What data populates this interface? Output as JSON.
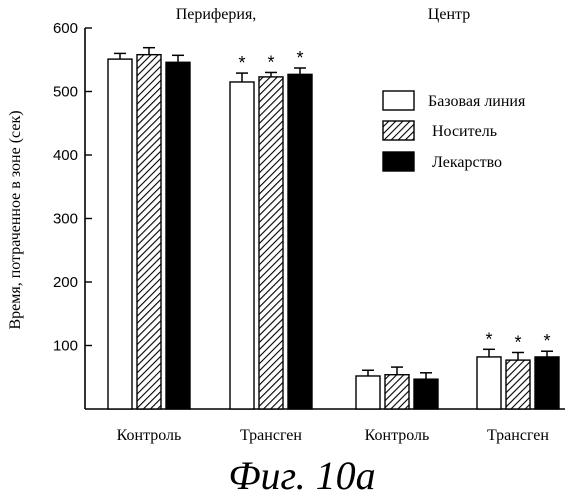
{
  "chart_data": {
    "type": "bar",
    "group_titles": [
      {
        "label": "Периферия,",
        "groups": [
          0,
          1
        ]
      },
      {
        "label": "Центр",
        "groups": [
          2,
          3
        ]
      }
    ],
    "categories": [
      "Контроль",
      "Трансген",
      "Контроль",
      "Трансген"
    ],
    "ylabel": "Время, потраченное  в зоне (сек)",
    "ylim": [
      0,
      600
    ],
    "yticks": [
      100,
      200,
      300,
      400,
      500,
      600
    ],
    "legend_position": "right",
    "grid": false,
    "series": [
      {
        "name": "Базовая линия",
        "fill": "white",
        "values": [
          551,
          515,
          52,
          82
        ],
        "errors": [
          9,
          14,
          9,
          12
        ],
        "significant": [
          false,
          true,
          false,
          true
        ]
      },
      {
        "name": "Носитель",
        "fill": "hatched",
        "values": [
          558,
          523,
          54,
          77
        ],
        "errors": [
          11,
          7,
          12,
          12
        ],
        "significant": [
          false,
          true,
          false,
          true
        ]
      },
      {
        "name": "Лекарство",
        "fill": "black",
        "values": [
          546,
          527,
          47,
          82
        ],
        "errors": [
          11,
          10,
          10,
          9
        ],
        "significant": [
          false,
          true,
          false,
          true
        ]
      }
    ],
    "significance_marker": "*"
  },
  "caption": "Фиг. 10а",
  "colors": {
    "ink": "#000000",
    "paper": "#ffffff"
  }
}
